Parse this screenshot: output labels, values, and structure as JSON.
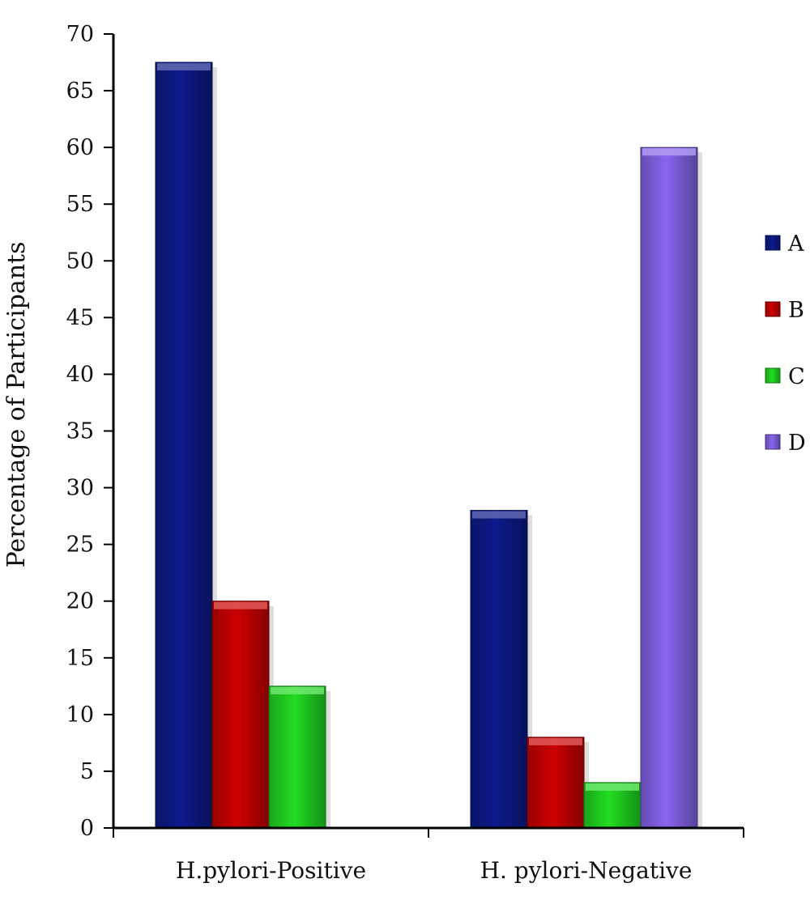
{
  "chart_data": {
    "type": "bar",
    "title": "",
    "xlabel": "",
    "ylabel": "Percentage of Participants",
    "ylim": [
      0,
      70
    ],
    "yticks": [
      0,
      5,
      10,
      15,
      20,
      25,
      30,
      35,
      40,
      45,
      50,
      55,
      60,
      65,
      70
    ],
    "categories": [
      "H.pylori-Positive",
      "H. pylori-Negative"
    ],
    "series": [
      {
        "name": "A",
        "color": "#0d1a8c",
        "values": [
          67.5,
          28
        ]
      },
      {
        "name": "B",
        "color": "#cc0000",
        "values": [
          20,
          8
        ]
      },
      {
        "name": "C",
        "color": "#22dd22",
        "values": [
          12.5,
          4
        ]
      },
      {
        "name": "D",
        "color": "#8866ee",
        "values": [
          null,
          60
        ]
      }
    ],
    "legend_position": "right",
    "grid": false
  }
}
